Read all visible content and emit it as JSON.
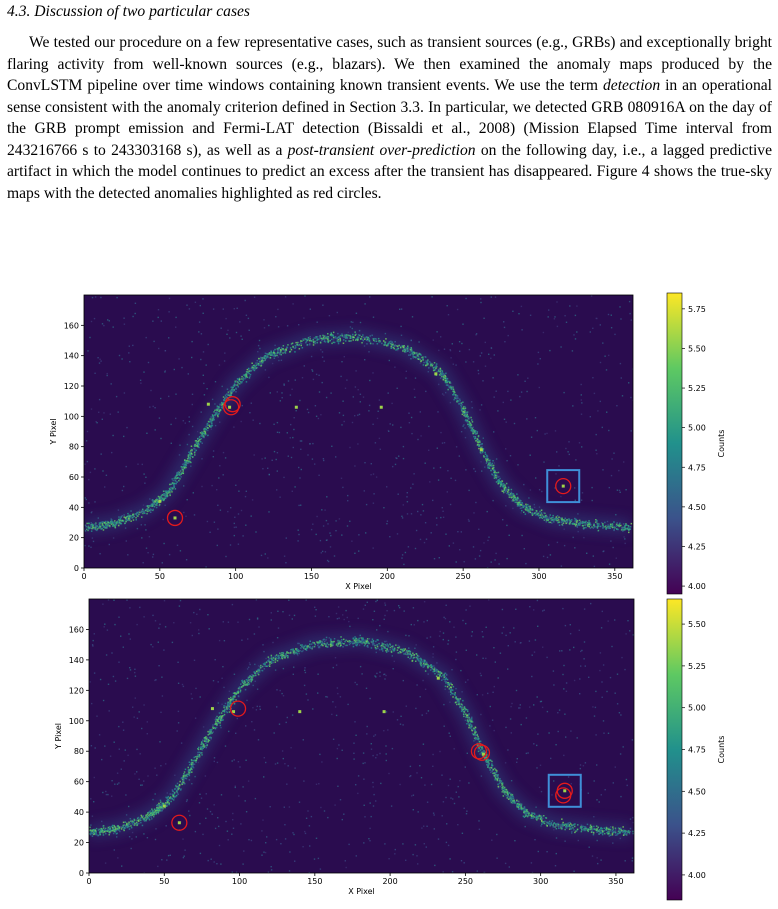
{
  "section": {
    "heading": "4.3. Discussion of two particular cases",
    "paragraph": {
      "p1": "We tested our procedure on a few representative cases, such as transient sources (e.g., GRBs) and exceptionally bright flaring activity from well-known sources (e.g., blazars). We then examined the anomaly maps produced by the ConvLSTM pipeline over time windows containing known transient events. We use the term ",
      "em1": "detection",
      "p2": " in an operational sense consistent with the anomaly criterion defined in Section 3.3. In particular, we detected GRB 080916A on the day of the GRB prompt emission and Fermi-LAT detection (Bissaldi et al., 2008) (Mission Elapsed Time interval from 243216766 s to 243303168 s), as well as a ",
      "em2": "post-transient over-prediction",
      "p3": " on the following day, i.e., a lagged predictive artifact in which the model continues to predict an excess after the transient has disappeared. Figure 4 shows the true-sky maps with the detected anomalies highlighted as red circles."
    }
  },
  "figure": {
    "panels": [
      {
        "id": "top",
        "xlabel": "X Pixel",
        "ylabel": "Y Pixel",
        "colorbar_label": "Counts",
        "x_ticks": [
          "0",
          "50",
          "100",
          "150",
          "200",
          "250",
          "300",
          "350"
        ],
        "y_ticks": [
          "0",
          "20",
          "40",
          "60",
          "80",
          "100",
          "120",
          "140",
          "160"
        ],
        "colorbar_ticks": [
          "4.00",
          "4.25",
          "4.50",
          "4.75",
          "5.00",
          "5.25",
          "5.50",
          "5.75"
        ],
        "colorbar_range": [
          3.95,
          5.85
        ],
        "anomalies": [
          [
            60,
            33
          ],
          [
            97,
            106
          ],
          [
            98,
            108
          ],
          [
            316,
            54
          ]
        ],
        "source_box": [
          316,
          54
        ]
      },
      {
        "id": "bottom",
        "xlabel": "X Pixel",
        "ylabel": "Y Pixel",
        "colorbar_label": "Counts",
        "x_ticks": [
          "0",
          "50",
          "100",
          "150",
          "200",
          "250",
          "300",
          "350"
        ],
        "y_ticks": [
          "0",
          "20",
          "40",
          "60",
          "80",
          "100",
          "120",
          "140",
          "160"
        ],
        "colorbar_ticks": [
          "4.00",
          "4.25",
          "4.50",
          "4.75",
          "5.00",
          "5.25",
          "5.50"
        ],
        "colorbar_range": [
          3.85,
          5.65
        ],
        "anomalies": [
          [
            60,
            33
          ],
          [
            99,
            108
          ],
          [
            259,
            80
          ],
          [
            261,
            79
          ],
          [
            315,
            51
          ],
          [
            316,
            54
          ]
        ],
        "source_box": [
          316,
          54
        ]
      }
    ],
    "colors": {
      "background": "#2a0c4f",
      "circle": "#e41a1c",
      "box": "#3f8fd8"
    }
  }
}
